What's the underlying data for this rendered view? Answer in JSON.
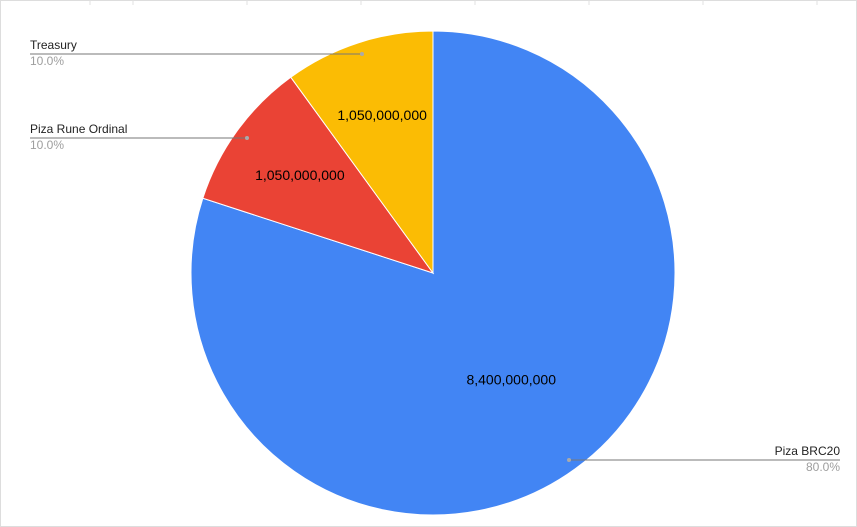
{
  "chart_data": {
    "type": "pie",
    "categories": [
      "Piza BRC20",
      "Piza Rune Ordinal",
      "Treasury"
    ],
    "values": [
      8400000000,
      1050000000,
      1050000000
    ],
    "value_labels": [
      "8,400,000,000",
      "1,050,000,000",
      "1,050,000,000"
    ],
    "percent_labels": [
      {
        "value": 80,
        "label": "80.0%"
      },
      {
        "value": 10,
        "label": "10.0%"
      },
      {
        "value": 10,
        "label": "10.0%"
      }
    ],
    "colors": [
      "#4285f4",
      "#ea4335",
      "#fbbc04"
    ]
  }
}
